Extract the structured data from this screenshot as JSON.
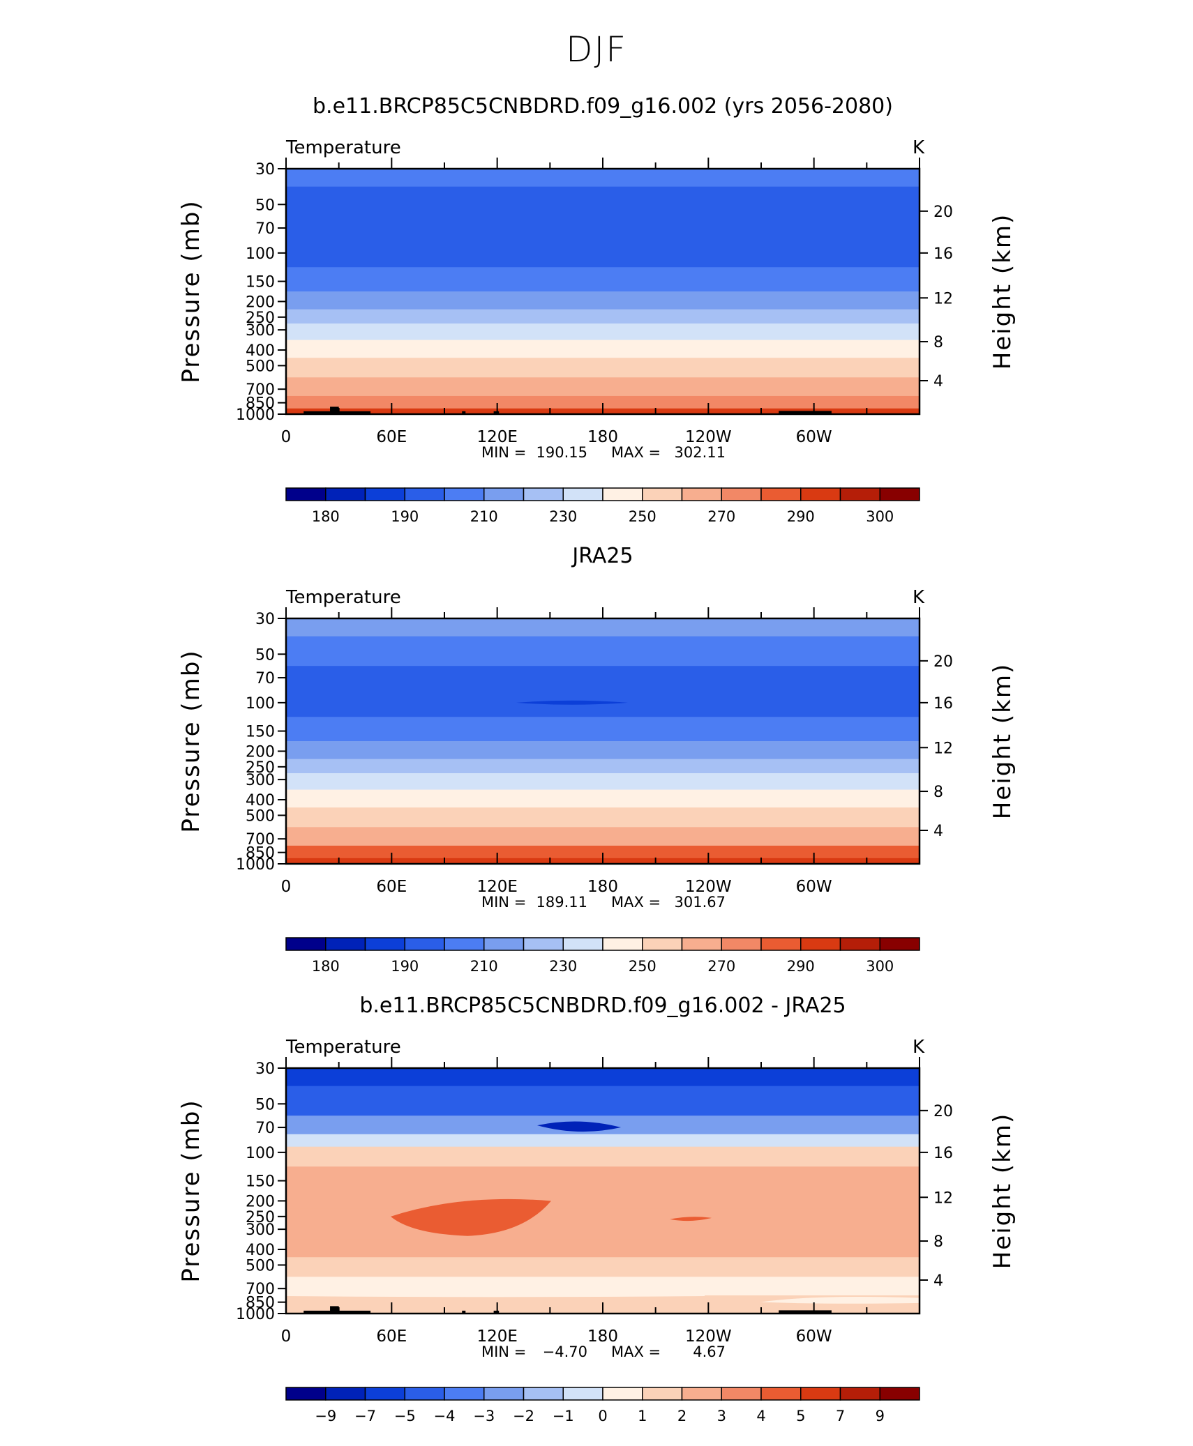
{
  "main_title": "DJF",
  "colors": {
    "axis": "#000000",
    "land": "#000000",
    "temp_levels": [
      "#00008b",
      "#0022b8",
      "#0c3fd8",
      "#2a5ee8",
      "#4c7df3",
      "#799eef",
      "#a6c0f4",
      "#d2e2f8",
      "#fff1e4",
      "#fbd2b8",
      "#f7ae8f",
      "#f28866",
      "#ea5c32",
      "#d93a12",
      "#b51e08",
      "#880000"
    ],
    "diff_levels": [
      "#00008b",
      "#0022b8",
      "#0c3fd8",
      "#2a5ee8",
      "#4c7df3",
      "#799eef",
      "#a6c0f4",
      "#d2e2f8",
      "#fff1e4",
      "#fbd2b8",
      "#f7ae8f",
      "#f28866",
      "#ea5c32",
      "#d93a12",
      "#b51e08",
      "#880000"
    ]
  },
  "chart_data": [
    {
      "type": "heatmap",
      "title": "b.e11.BRCP85C5CNBDRD.f09_g16.002 (yrs 2056-2080)",
      "variable": "Temperature",
      "units": "K",
      "ylabel": "Pressure (mb)",
      "y2label": "Height (km)",
      "x_ticks": [
        "0",
        "60E",
        "120E",
        "180",
        "120W",
        "60W"
      ],
      "x_tick_lons": [
        0,
        60,
        120,
        180,
        240,
        300
      ],
      "xlim": [
        0,
        360
      ],
      "p_ticks": [
        "30",
        "50",
        "70",
        "100",
        "150",
        "200",
        "250",
        "300",
        "400",
        "500",
        "700",
        "850",
        "1000"
      ],
      "h_ticks": [
        "20",
        "16",
        "12",
        "8",
        "4"
      ],
      "stats": {
        "min_label": "MIN =",
        "min": "190.15",
        "max_label": "MAX =",
        "max": "302.11"
      },
      "colorbar_labels": [
        "180",
        "190",
        "210",
        "230",
        "250",
        "270",
        "290",
        "300"
      ],
      "layers": [
        {
          "p": 30,
          "level": 4
        },
        {
          "p": 50,
          "level": 3
        },
        {
          "p": 70,
          "level": 3
        },
        {
          "p": 100,
          "level": 3
        },
        {
          "p": 150,
          "level": 4
        },
        {
          "p": 200,
          "level": 5
        },
        {
          "p": 250,
          "level": 6
        },
        {
          "p": 300,
          "level": 7
        },
        {
          "p": 400,
          "level": 8
        },
        {
          "p": 500,
          "level": 9
        },
        {
          "p": 700,
          "level": 10
        },
        {
          "p": 850,
          "level": 11
        },
        {
          "p": 1000,
          "level": 13
        }
      ]
    },
    {
      "type": "heatmap",
      "title": "JRA25",
      "variable": "Temperature",
      "units": "K",
      "ylabel": "Pressure (mb)",
      "y2label": "Height (km)",
      "x_ticks": [
        "0",
        "60E",
        "120E",
        "180",
        "120W",
        "60W"
      ],
      "x_tick_lons": [
        0,
        60,
        120,
        180,
        240,
        300
      ],
      "xlim": [
        0,
        360
      ],
      "p_ticks": [
        "30",
        "50",
        "70",
        "100",
        "150",
        "200",
        "250",
        "300",
        "400",
        "500",
        "700",
        "850",
        "1000"
      ],
      "h_ticks": [
        "20",
        "16",
        "12",
        "8",
        "4"
      ],
      "stats": {
        "min_label": "MIN =",
        "min": "189.11",
        "max_label": "MAX =",
        "max": "301.67"
      },
      "colorbar_labels": [
        "180",
        "190",
        "210",
        "230",
        "250",
        "270",
        "290",
        "300"
      ],
      "layers": [
        {
          "p": 30,
          "level": 5
        },
        {
          "p": 50,
          "level": 4
        },
        {
          "p": 70,
          "level": 3
        },
        {
          "p": 100,
          "level": 3
        },
        {
          "p": 150,
          "level": 4
        },
        {
          "p": 200,
          "level": 5
        },
        {
          "p": 250,
          "level": 6
        },
        {
          "p": 300,
          "level": 7
        },
        {
          "p": 400,
          "level": 8
        },
        {
          "p": 500,
          "level": 9
        },
        {
          "p": 700,
          "level": 10
        },
        {
          "p": 850,
          "level": 12
        },
        {
          "p": 1000,
          "level": 13
        }
      ]
    },
    {
      "type": "heatmap",
      "title": "b.e11.BRCP85C5CNBDRD.f09_g16.002 - JRA25",
      "variable": "Temperature",
      "units": "K",
      "ylabel": "Pressure (mb)",
      "y2label": "Height (km)",
      "x_ticks": [
        "0",
        "60E",
        "120E",
        "180",
        "120W",
        "60W"
      ],
      "x_tick_lons": [
        0,
        60,
        120,
        180,
        240,
        300
      ],
      "xlim": [
        0,
        360
      ],
      "p_ticks": [
        "30",
        "50",
        "70",
        "100",
        "150",
        "200",
        "250",
        "300",
        "400",
        "500",
        "700",
        "850",
        "1000"
      ],
      "h_ticks": [
        "20",
        "16",
        "12",
        "8",
        "4"
      ],
      "stats": {
        "min_label": "MIN =",
        "min": "−4.70",
        "max_label": "MAX =",
        "max": "4.67"
      },
      "colorbar_labels": [
        "−9",
        "−7",
        "−5",
        "−4",
        "−3",
        "−2",
        "−1",
        "0",
        "1",
        "2",
        "3",
        "4",
        "5",
        "7",
        "9"
      ],
      "layers": [
        {
          "p": 30,
          "level": 2
        },
        {
          "p": 50,
          "level": 3
        },
        {
          "p": 70,
          "level": 5
        },
        {
          "p": 85,
          "level": 7
        },
        {
          "p": 100,
          "level": 9
        },
        {
          "p": 150,
          "level": 10
        },
        {
          "p": 200,
          "level": 10
        },
        {
          "p": 250,
          "level": 10
        },
        {
          "p": 300,
          "level": 10
        },
        {
          "p": 400,
          "level": 10
        },
        {
          "p": 500,
          "level": 9
        },
        {
          "p": 700,
          "level": 8
        },
        {
          "p": 850,
          "level": 9
        },
        {
          "p": 1000,
          "level": 9
        }
      ]
    }
  ]
}
